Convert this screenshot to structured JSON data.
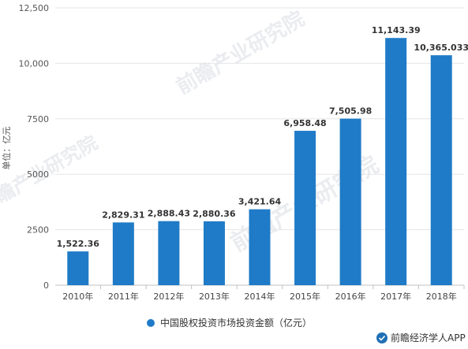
{
  "chart_data": {
    "type": "bar",
    "categories": [
      "2010年",
      "2011年",
      "2012年",
      "2013年",
      "2014年",
      "2015年",
      "2016年",
      "2017年",
      "2018年"
    ],
    "values": [
      1522.36,
      2829.31,
      2888.43,
      2880.36,
      3421.64,
      6958.48,
      7505.98,
      11143.39,
      10365.033
    ],
    "value_labels": [
      "1,522.36",
      "2,829.31",
      "2,888.43",
      "2,880.36",
      "3,421.64",
      "6,958.48",
      "7,505.98",
      "11,143.39",
      "10,365.033"
    ],
    "yticks": [
      0,
      2500,
      5000,
      7500,
      10000,
      12500
    ],
    "ytick_labels": [
      "0",
      "2500",
      "5000",
      "7500",
      "10,000",
      "12,500"
    ],
    "ylim": [
      0,
      12500
    ],
    "ylabel": "单位：亿元",
    "series": [
      {
        "name": "中国股权投资市场投资金额（亿元）",
        "color": "#1f7bc7"
      }
    ],
    "legend_position": "bottom",
    "grid": true
  },
  "watermarks": [
    "前瞻产业研究院",
    "前瞻产业研究院",
    "前瞻产业研究院"
  ],
  "credit": "前瞻经济学人APP",
  "colors": {
    "bar": "#1f7bc7",
    "grid": "#e6e6e6",
    "axis": "#c0c0c0",
    "credit_icon": "#1f6fb5"
  }
}
